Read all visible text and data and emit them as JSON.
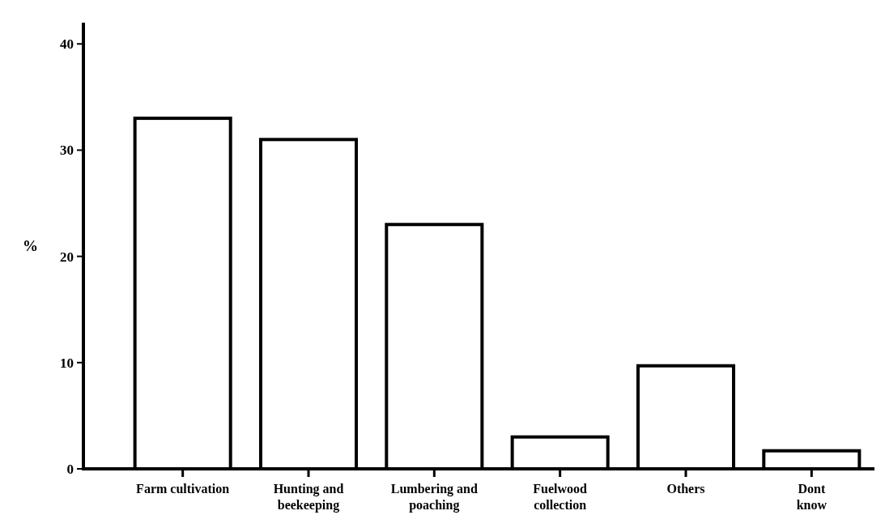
{
  "chart_data": {
    "type": "bar",
    "ylabel": "%",
    "categories": [
      "Farm cultivation",
      "Hunting and\nbeekeeping",
      "Lumbering and\npoaching",
      "Fuelwood\ncollection",
      "Others",
      "Dont\nknow"
    ],
    "values": [
      33,
      31,
      23,
      3,
      9.7,
      1.7
    ],
    "color": "#ffffff",
    "ylim": [
      0,
      42
    ],
    "yticks": [
      0,
      10,
      20,
      30,
      40
    ],
    "grid": false
  }
}
